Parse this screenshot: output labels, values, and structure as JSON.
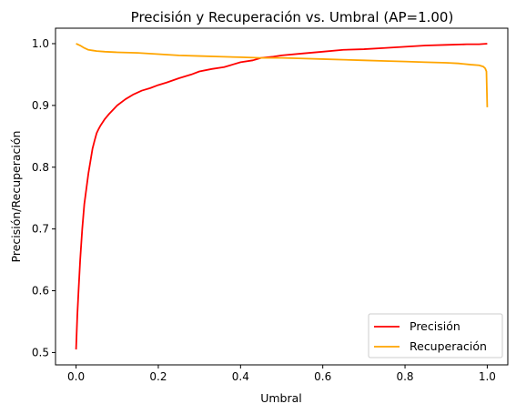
{
  "chart_data": {
    "type": "line",
    "title": "Precisión y Recuperación vs. Umbral (AP=1.00)",
    "xlabel": "Umbral",
    "ylabel": "Precisión/Recuperación",
    "xlim": [
      -0.05,
      1.05
    ],
    "ylim": [
      0.48,
      1.025
    ],
    "xticks": [
      0.0,
      0.2,
      0.4,
      0.6,
      0.8,
      1.0
    ],
    "xtick_labels": [
      "0.0",
      "0.2",
      "0.4",
      "0.6",
      "0.8",
      "1.0"
    ],
    "yticks": [
      0.5,
      0.6,
      0.7,
      0.8,
      0.9,
      1.0
    ],
    "ytick_labels": [
      "0.5",
      "0.6",
      "0.7",
      "0.8",
      "0.9",
      "1.0"
    ],
    "grid": false,
    "legend": "lower right",
    "series": [
      {
        "name": "Precisión",
        "color": "#ff0000",
        "x": [
          0.0,
          0.003,
          0.006,
          0.01,
          0.015,
          0.02,
          0.025,
          0.03,
          0.035,
          0.04,
          0.045,
          0.05,
          0.055,
          0.06,
          0.07,
          0.08,
          0.09,
          0.1,
          0.12,
          0.14,
          0.16,
          0.18,
          0.2,
          0.22,
          0.25,
          0.28,
          0.3,
          0.33,
          0.36,
          0.38,
          0.4,
          0.43,
          0.45,
          0.48,
          0.5,
          0.55,
          0.6,
          0.65,
          0.7,
          0.75,
          0.8,
          0.85,
          0.9,
          0.95,
          0.98,
          1.0
        ],
        "y": [
          0.505,
          0.56,
          0.6,
          0.65,
          0.7,
          0.74,
          0.765,
          0.79,
          0.81,
          0.83,
          0.843,
          0.855,
          0.862,
          0.868,
          0.878,
          0.886,
          0.893,
          0.9,
          0.91,
          0.918,
          0.924,
          0.928,
          0.933,
          0.937,
          0.944,
          0.95,
          0.955,
          0.959,
          0.962,
          0.966,
          0.97,
          0.973,
          0.977,
          0.979,
          0.981,
          0.984,
          0.987,
          0.99,
          0.991,
          0.993,
          0.995,
          0.997,
          0.998,
          0.999,
          0.999,
          1.0
        ]
      },
      {
        "name": "Recuperación",
        "color": "#ffa500",
        "x": [
          0.0,
          0.01,
          0.02,
          0.03,
          0.04,
          0.05,
          0.07,
          0.1,
          0.15,
          0.2,
          0.25,
          0.3,
          0.35,
          0.4,
          0.45,
          0.5,
          0.55,
          0.6,
          0.65,
          0.7,
          0.75,
          0.8,
          0.85,
          0.9,
          0.93,
          0.96,
          0.98,
          0.99,
          0.995,
          0.998,
          1.0
        ],
        "y": [
          1.0,
          0.997,
          0.993,
          0.99,
          0.989,
          0.988,
          0.987,
          0.986,
          0.985,
          0.983,
          0.981,
          0.98,
          0.979,
          0.978,
          0.977,
          0.977,
          0.976,
          0.975,
          0.974,
          0.973,
          0.972,
          0.971,
          0.97,
          0.969,
          0.968,
          0.966,
          0.965,
          0.963,
          0.96,
          0.955,
          0.897
        ]
      }
    ]
  }
}
